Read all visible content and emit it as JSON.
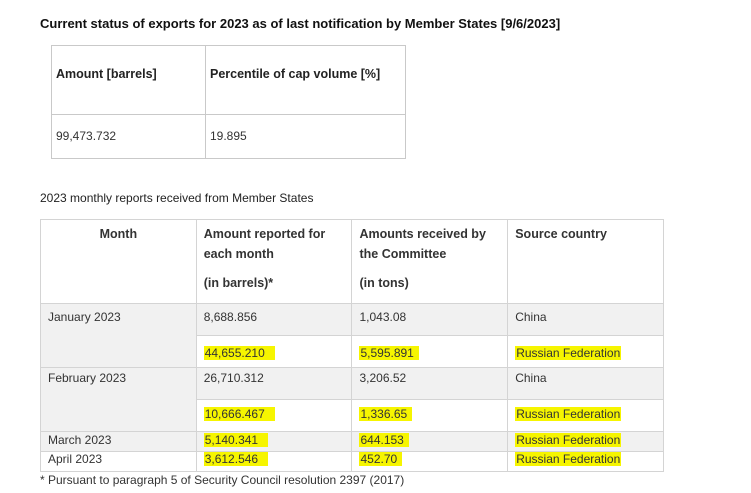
{
  "status": {
    "title": "Current status of exports for 2023 as of last notification by Member States [9/6/2023]",
    "headers": [
      "Amount [barrels]",
      "Percentile of cap volume [%]"
    ],
    "values": [
      "99,473.732",
      "19.895"
    ]
  },
  "monthly": {
    "title": "2023 monthly reports received from Member States",
    "headers": {
      "month": "Month",
      "amount_line1": "Amount reported for",
      "amount_line2": "each month",
      "amount_line3": "(in barrels)*",
      "received_line1": "Amounts received by",
      "received_line2": "the Committee",
      "received_line3": "(in tons)",
      "source": "Source country"
    },
    "rows": [
      {
        "month": "January 2023",
        "amount": "8,688.856",
        "received": "1,043.08",
        "source": "China",
        "highlight": false
      },
      {
        "month": "",
        "amount": "44,655.210",
        "received": "5,595.891",
        "source": "Russian Federation",
        "highlight": true
      },
      {
        "month": "February 2023",
        "amount": "26,710.312",
        "received": "3,206.52",
        "source": "China",
        "highlight": false
      },
      {
        "month": "",
        "amount": "10,666.467",
        "received": "1,336.65",
        "source": "Russian Federation",
        "highlight": true
      },
      {
        "month": "March 2023",
        "amount": "5,140.341",
        "received": "644.153",
        "source": "Russian Federation",
        "highlight": true
      },
      {
        "month": "April 2023",
        "amount": "3,612.546",
        "received": "452.70",
        "source": "Russian Federation",
        "highlight": true
      }
    ]
  },
  "footnote": "* Pursuant to paragraph 5 of Security Council resolution 2397 (2017)",
  "colors": {
    "highlight": "#f6f500",
    "row_shade": "#f1f1f1",
    "border": "#d4d4d4"
  }
}
